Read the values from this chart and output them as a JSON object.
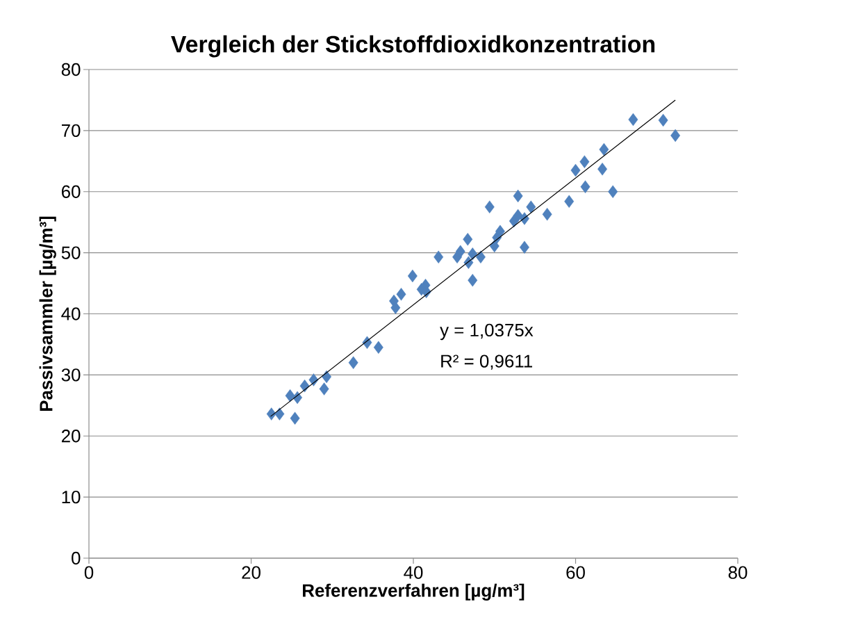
{
  "chart_data": {
    "type": "scatter",
    "title": "Vergleich der Stickstoffdioxidkonzentration",
    "xlabel": "Referenzverfahren [µg/m³]",
    "ylabel": "Passivsammler [µg/m³]",
    "series": [
      {
        "color": "#4f81bd",
        "marker": "diamond",
        "x": [
          22.5,
          23.5,
          25.4,
          24.8,
          25.7,
          26.6,
          27.7,
          29.3,
          29.0,
          32.6,
          34.3,
          35.7,
          37.6,
          37.8,
          38.5,
          39.9,
          41.0,
          41.5,
          41.6,
          43.1,
          45.4,
          45.8,
          46.7,
          46.8,
          47.3,
          47.3,
          48.3,
          49.4,
          50.0,
          50.3,
          50.7,
          52.4,
          52.9,
          52.9,
          53.7,
          53.7,
          54.5,
          56.5,
          59.2,
          60.0,
          61.1,
          61.2,
          63.3,
          63.5,
          64.6,
          67.1,
          70.8,
          72.3
        ],
        "values": [
          23.6,
          23.6,
          22.9,
          26.6,
          26.3,
          28.2,
          29.2,
          29.7,
          27.7,
          32.0,
          35.3,
          34.5,
          42.1,
          41.0,
          43.2,
          46.2,
          44.0,
          44.7,
          43.6,
          49.3,
          49.3,
          50.2,
          52.2,
          48.4,
          49.8,
          45.5,
          49.3,
          57.5,
          51.1,
          52.5,
          53.5,
          55.2,
          56.1,
          59.3,
          55.6,
          50.9,
          57.5,
          56.3,
          58.4,
          63.5,
          64.9,
          60.8,
          63.7,
          66.9,
          60.0,
          71.8,
          71.7,
          69.2
        ]
      },
      {
        "type": "line",
        "color": "#000000",
        "marker": "none",
        "x": [
          22.4,
          72.3
        ],
        "values": [
          23.2,
          75.0
        ]
      }
    ],
    "xlim": [
      0,
      80
    ],
    "ylim": [
      0,
      80
    ],
    "xticks": [
      0,
      20,
      40,
      60,
      80
    ],
    "yticks": [
      0,
      10,
      20,
      30,
      40,
      50,
      60,
      70,
      80
    ],
    "grid": "y",
    "annotations": [
      "y = 1,0375x",
      "R² = 0,9611"
    ]
  }
}
